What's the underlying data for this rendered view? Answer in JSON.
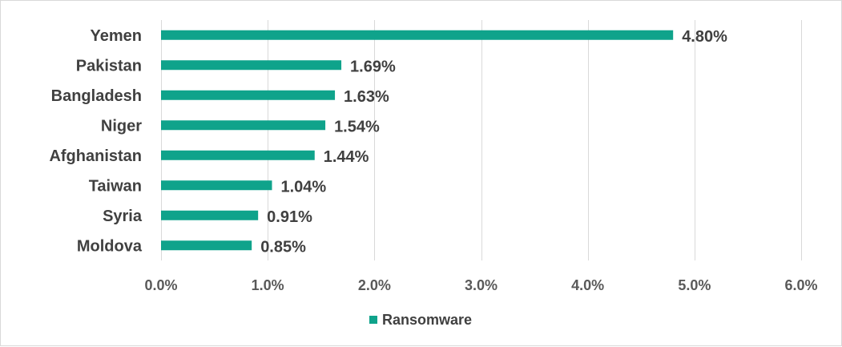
{
  "chart_data": {
    "type": "bar",
    "orientation": "horizontal",
    "categories": [
      "Yemen",
      "Pakistan",
      "Bangladesh",
      "Niger",
      "Afghanistan",
      "Taiwan",
      "Syria",
      "Moldova"
    ],
    "series": [
      {
        "name": "Ransomware",
        "color": "#0fa38b",
        "values": [
          4.8,
          1.69,
          1.63,
          1.54,
          1.44,
          1.04,
          0.91,
          0.85
        ],
        "data_labels": [
          "4.80%",
          "1.69%",
          "1.63%",
          "1.54%",
          "1.44%",
          "1.04%",
          "0.91%",
          "0.85%"
        ]
      }
    ],
    "xlim": [
      0,
      6
    ],
    "x_ticks": [
      0,
      1,
      2,
      3,
      4,
      5,
      6
    ],
    "x_tick_labels": [
      "0.0%",
      "1.0%",
      "2.0%",
      "3.0%",
      "4.0%",
      "5.0%",
      "6.0%"
    ],
    "title": "",
    "xlabel": "",
    "ylabel": "",
    "grid": "vertical",
    "legend_position": "bottom",
    "gridline_color": "#d9d9d9"
  }
}
